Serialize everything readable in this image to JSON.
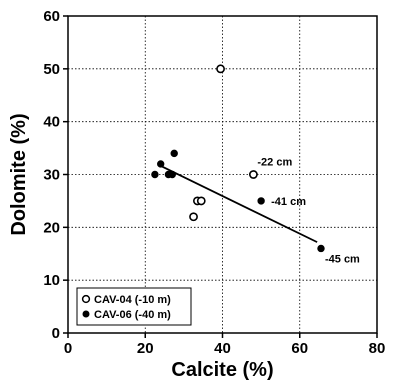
{
  "chart_data": {
    "type": "scatter",
    "xlabel": "Calcite (%)",
    "ylabel": "Dolomite (%)",
    "xlim": [
      0,
      80
    ],
    "ylim": [
      0,
      60
    ],
    "xticks": [
      "0",
      "20",
      "40",
      "60",
      "80"
    ],
    "yticks": [
      "0",
      "10",
      "20",
      "30",
      "40",
      "50",
      "60"
    ],
    "grid": true,
    "legend_position": "bottom-left",
    "series": [
      {
        "name": "CAV-04 (-10 m)",
        "marker": "open-circle",
        "points": [
          {
            "x": 39.5,
            "y": 50
          },
          {
            "x": 48,
            "y": 30
          },
          {
            "x": 32.5,
            "y": 22
          },
          {
            "x": 33.5,
            "y": 25
          },
          {
            "x": 34.5,
            "y": 25
          }
        ]
      },
      {
        "name": "CAV-06 (-40 m)",
        "marker": "filled-circle",
        "points": [
          {
            "x": 22.5,
            "y": 30
          },
          {
            "x": 24,
            "y": 32
          },
          {
            "x": 26,
            "y": 30
          },
          {
            "x": 27,
            "y": 30
          },
          {
            "x": 27.5,
            "y": 34
          },
          {
            "x": 50,
            "y": 25
          },
          {
            "x": 65.5,
            "y": 16
          }
        ]
      }
    ],
    "trendline": {
      "x": [
        23.5,
        64.5
      ],
      "y": [
        31.8,
        17.2
      ]
    },
    "annotations": [
      {
        "text": "-22 cm",
        "x": 48,
        "y": 30
      },
      {
        "text": "-41 cm",
        "x": 50,
        "y": 25
      },
      {
        "text": "-45 cm",
        "x": 65.5,
        "y": 16
      }
    ],
    "colors": {
      "marker": "#000000",
      "grid": "#000000",
      "background": "#ffffff"
    }
  }
}
